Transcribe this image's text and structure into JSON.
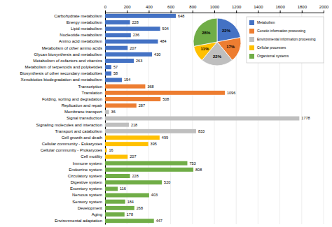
{
  "chart_data": [
    {
      "type": "bar",
      "orientation": "horizontal",
      "categories": [
        "Carbohydrate metabolism",
        "Energy metabolism",
        "Lipid metabolism",
        "Nucleotide metabolism",
        "Amino acid metabolism",
        "Metabolism of other amino acids",
        "Glycan biosynthesis and metabolism",
        "Metabolism of cofactors and vitamins",
        "Metabolism of terpenoids and polyketides",
        "Biosynthesis of other secondary metabolites",
        "Xenobiotics biodegradation and metabolism",
        "Transcription",
        "Translation",
        "Folding, sorting and degradation",
        "Replication and repair",
        "Membrane transport",
        "Signal transduction",
        "Signaling molecules and interaction",
        "Transport and catabolism",
        "Cell growth and death",
        "Cellular community - Eukaryotes",
        "Cellular community - Prokaryotes",
        "Cell motility",
        "Immune system",
        "Endocrine system",
        "Circulatory system",
        "Digestive system",
        "Excretory system",
        "Nervous system",
        "Sensory system",
        "Development",
        "Aging",
        "Environmental adaptation"
      ],
      "values": [
        648,
        228,
        504,
        236,
        484,
        207,
        430,
        263,
        57,
        58,
        154,
        368,
        1096,
        508,
        287,
        36,
        1778,
        218,
        833,
        499,
        395,
        16,
        207,
        753,
        808,
        228,
        520,
        116,
        403,
        184,
        268,
        178,
        447
      ],
      "colors": [
        "#4472c4",
        "#4472c4",
        "#4472c4",
        "#4472c4",
        "#4472c4",
        "#4472c4",
        "#4472c4",
        "#4472c4",
        "#4472c4",
        "#4472c4",
        "#4472c4",
        "#ed7d31",
        "#ed7d31",
        "#ed7d31",
        "#ed7d31",
        "#bfbfbf",
        "#bfbfbf",
        "#bfbfbf",
        "#bfbfbf",
        "#ffc000",
        "#ffc000",
        "#ffc000",
        "#ffc000",
        "#70ad47",
        "#70ad47",
        "#70ad47",
        "#70ad47",
        "#70ad47",
        "#70ad47",
        "#70ad47",
        "#70ad47",
        "#70ad47",
        "#70ad47"
      ],
      "xlim": [
        0,
        2000
      ],
      "xticks": [
        0,
        200,
        400,
        600,
        800,
        1000,
        1200,
        1400,
        1600,
        1800,
        2000
      ],
      "grid": true,
      "data_labels": true
    },
    {
      "type": "pie",
      "categories": [
        "Metabolism",
        "Genetic information processing",
        "Environmental information processing",
        "Cellular processes",
        "Organismal systems"
      ],
      "values": [
        22,
        17,
        22,
        11,
        28
      ],
      "value_labels": [
        "22%",
        "17%",
        "22%",
        "11%",
        "28%"
      ],
      "colors": [
        "#4472c4",
        "#ed7d31",
        "#bfbfbf",
        "#ffc000",
        "#70ad47"
      ],
      "data_labels": true
    }
  ]
}
